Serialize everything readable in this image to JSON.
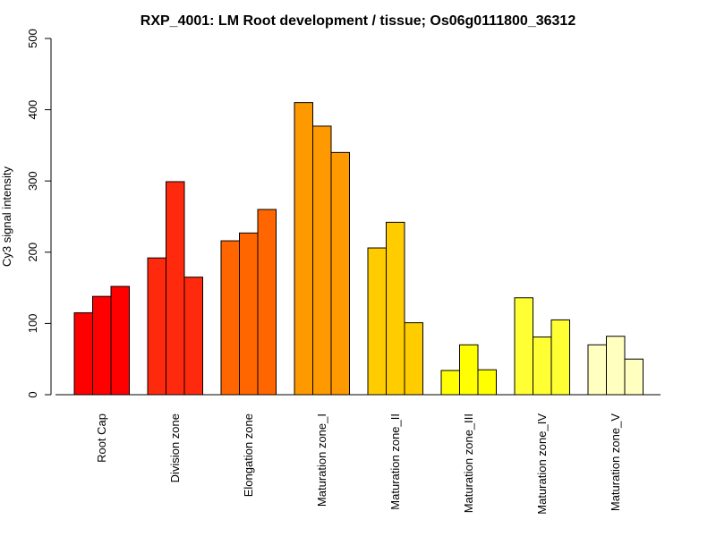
{
  "chart_data": {
    "type": "bar",
    "title": "RXP_4001: LM Root development / tissue; Os06g0111800_36312",
    "xlabel": "",
    "ylabel": "Cy3 signal intensity",
    "ylim": [
      0,
      500
    ],
    "yticks": [
      0,
      100,
      200,
      300,
      400,
      500
    ],
    "grid": false,
    "groups": [
      {
        "label": "Root Cap",
        "color": "#ff0000",
        "values": [
          115,
          138,
          152
        ]
      },
      {
        "label": "Division zone",
        "color": "#ff2a0d",
        "values": [
          192,
          299,
          165
        ]
      },
      {
        "label": "Elongation zone",
        "color": "#ff6600",
        "values": [
          216,
          227,
          260
        ]
      },
      {
        "label": "Maturation zone_I",
        "color": "#ff9900",
        "values": [
          410,
          377,
          340
        ]
      },
      {
        "label": "Maturation zone_II",
        "color": "#ffcc00",
        "values": [
          206,
          242,
          101
        ]
      },
      {
        "label": "Maturation zone_III",
        "color": "#ffff00",
        "values": [
          34,
          70,
          35
        ]
      },
      {
        "label": "Maturation zone_IV",
        "color": "#ffff33",
        "values": [
          136,
          81,
          105
        ]
      },
      {
        "label": "Maturation zone_V",
        "color": "#ffffbf",
        "values": [
          70,
          82,
          50
        ]
      }
    ]
  }
}
